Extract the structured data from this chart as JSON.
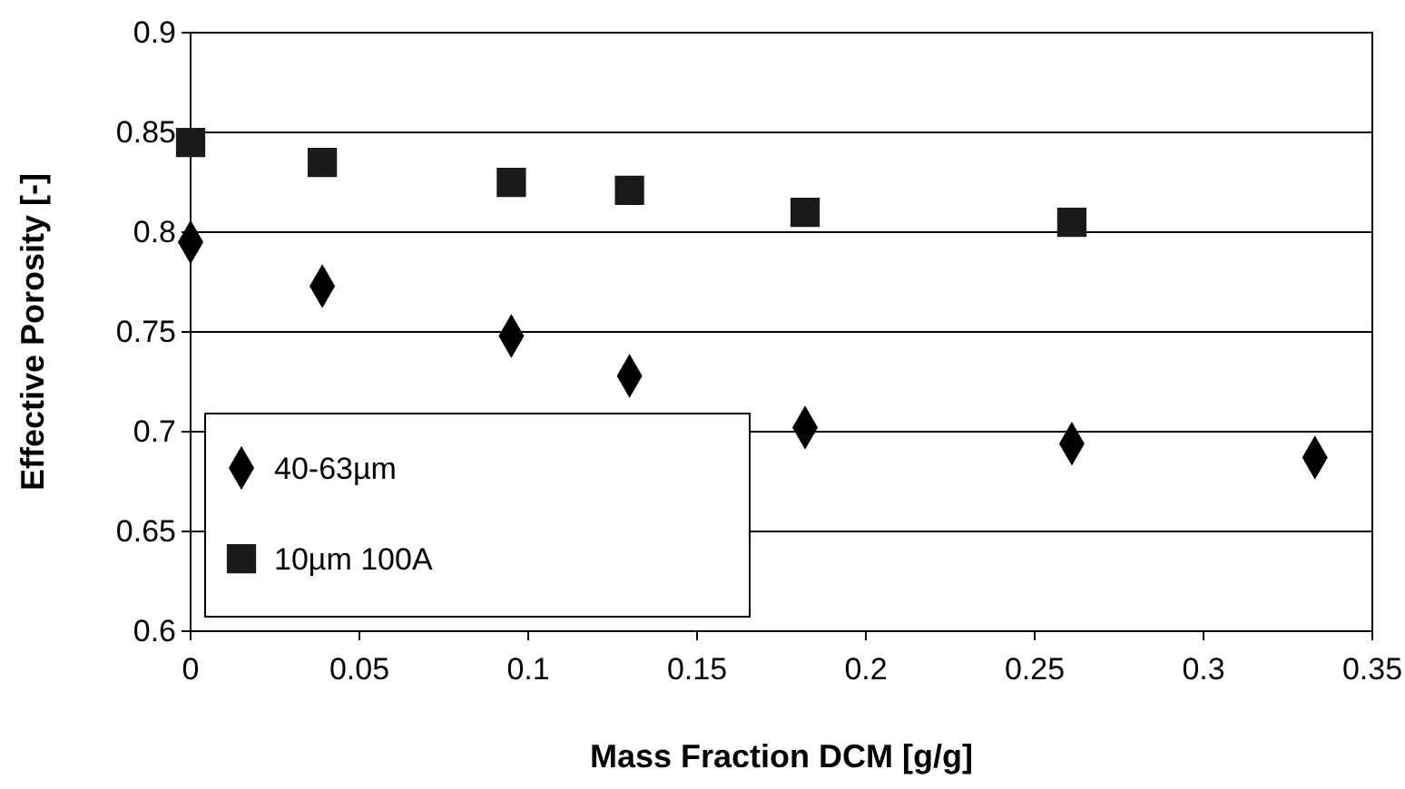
{
  "chart_data": {
    "type": "scatter",
    "xlabel": "Mass Fraction DCM [g/g]",
    "ylabel": "Effective Porosity [-]",
    "xlim": [
      0,
      0.35
    ],
    "xticks": [
      0,
      0.05,
      0.1,
      0.15,
      0.2,
      0.25,
      0.3,
      0.35
    ],
    "ylim": [
      0.6,
      0.9
    ],
    "yticks": [
      0.6,
      0.65,
      0.7,
      0.75,
      0.8,
      0.85,
      0.9
    ],
    "grid": "y",
    "legend": "bottom left",
    "series": [
      {
        "name": "40-63µm",
        "color": "#000000",
        "marker": "diamond",
        "x": [
          0,
          0.039,
          0.095,
          0.13,
          0.182,
          0.261,
          0.333
        ],
        "values": [
          0.795,
          0.773,
          0.748,
          0.728,
          0.702,
          0.694,
          0.687
        ]
      },
      {
        "name": "10µm 100A",
        "color": "#1a1a1a",
        "marker": "square",
        "x": [
          0,
          0.039,
          0.095,
          0.13,
          0.182,
          0.261
        ],
        "values": [
          0.845,
          0.835,
          0.825,
          0.821,
          0.81,
          0.805
        ]
      }
    ]
  }
}
